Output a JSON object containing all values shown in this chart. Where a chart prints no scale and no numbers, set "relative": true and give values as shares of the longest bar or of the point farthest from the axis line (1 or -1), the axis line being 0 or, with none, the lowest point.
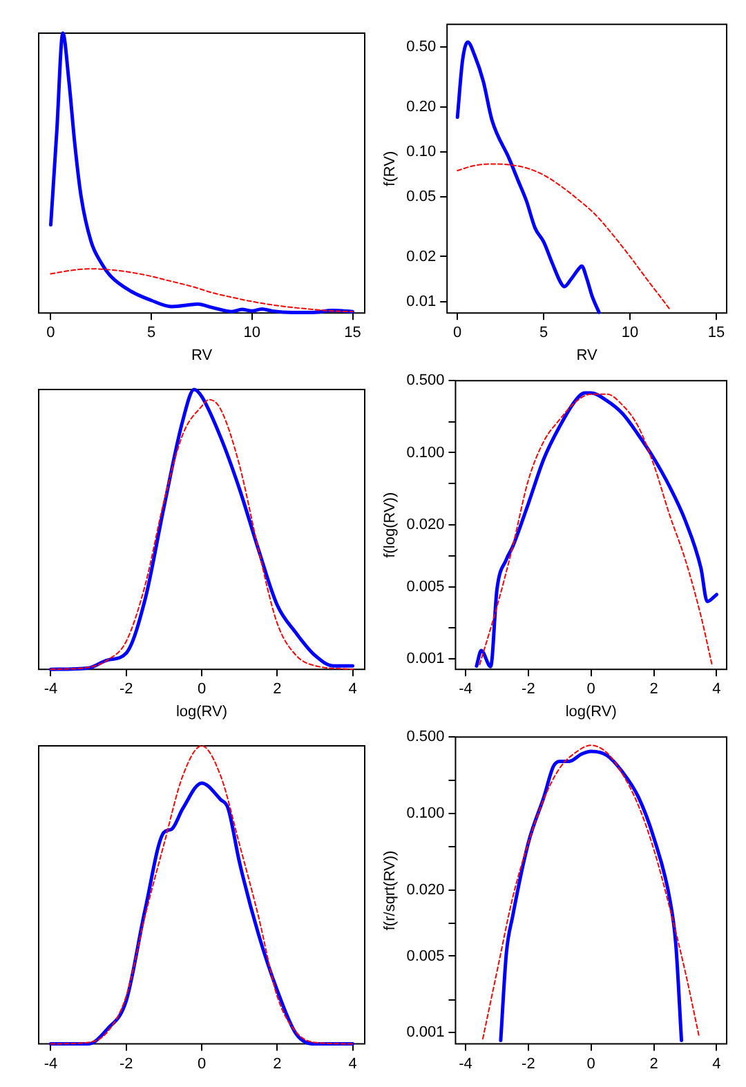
{
  "chart_data": [
    {
      "type": "line",
      "relative": true,
      "xlabel": "RV",
      "xlim": [
        -0.6,
        15.6
      ],
      "xticks": [
        0,
        5,
        10,
        15
      ],
      "series": [
        {
          "color": "#0000ff",
          "line_style": "solid",
          "x": [
            0,
            0.3,
            0.6,
            0.9,
            1.2,
            1.5,
            2,
            2.5,
            3,
            4,
            5,
            6,
            7,
            7.3,
            8,
            9,
            9.5,
            10,
            10.5,
            11,
            12,
            13,
            14,
            15
          ],
          "values": [
            0.315,
            0.65,
            1.0,
            0.83,
            0.6,
            0.42,
            0.256,
            0.18,
            0.13,
            0.077,
            0.045,
            0.023,
            0.03,
            0.032,
            0.02,
            0.005,
            0.013,
            0.007,
            0.014,
            0.007,
            0.002,
            0.002,
            0.009,
            0.005
          ]
        },
        {
          "color": "#ff0000",
          "line_style": "dashed",
          "x": [
            0,
            1,
            2,
            3,
            4,
            5,
            6,
            7,
            8,
            9,
            10,
            11,
            12,
            13,
            14,
            15
          ],
          "values": [
            0.14,
            0.152,
            0.158,
            0.154,
            0.145,
            0.131,
            0.113,
            0.095,
            0.073,
            0.056,
            0.041,
            0.029,
            0.02,
            0.013,
            0.007,
            0.005
          ]
        }
      ]
    },
    {
      "type": "line",
      "log": true,
      "xlabel": "RV",
      "ylabel": "f(RV)",
      "xlim": [
        -0.6,
        15.6
      ],
      "xticks": [
        0,
        5,
        10,
        15
      ],
      "ylim": [
        0.0084,
        0.71
      ],
      "yticks": [
        0.01,
        0.02,
        0.05,
        {
          "value": 0.1,
          "label": "0.10"
        },
        {
          "value": 0.2,
          "label": "0.20"
        },
        {
          "value": 0.5,
          "label": "0.50"
        }
      ],
      "series": [
        {
          "color": "#0000ff",
          "line_style": "solid",
          "x": [
            0,
            0.3,
            0.6,
            1,
            1.5,
            2,
            3,
            3.5,
            4,
            4.5,
            5,
            5.5,
            6,
            6.2,
            6.6,
            7,
            7.2,
            7.5,
            7.8,
            8.2
          ],
          "values": [
            0.17,
            0.41,
            0.54,
            0.44,
            0.295,
            0.163,
            0.09,
            0.065,
            0.047,
            0.031,
            0.025,
            0.018,
            0.0133,
            0.0126,
            0.0142,
            0.0164,
            0.0173,
            0.0142,
            0.0109,
            0.0085
          ]
        },
        {
          "color": "#ff0000",
          "line_style": "dashed",
          "x": [
            0,
            1,
            2,
            3,
            4,
            5,
            6,
            7,
            8,
            9,
            10,
            11,
            12,
            12.3
          ],
          "values": [
            0.075,
            0.081,
            0.083,
            0.082,
            0.078,
            0.07,
            0.059,
            0.048,
            0.038,
            0.028,
            0.02,
            0.014,
            0.0099,
            0.0089
          ]
        }
      ]
    },
    {
      "type": "line",
      "relative": true,
      "xlabel": "log(RV)",
      "xlim": [
        -4.32,
        4.32
      ],
      "xticks": [
        -4,
        -2,
        0,
        2,
        4
      ],
      "series": [
        {
          "color": "#0000ff",
          "line_style": "solid",
          "x": [
            -4,
            -3,
            -2.5,
            -2,
            -1.5,
            -1,
            -0.5,
            -0.2,
            0,
            0.5,
            1,
            1.5,
            2,
            2.5,
            3,
            3.5,
            4
          ],
          "values": [
            0,
            0.005,
            0.033,
            0.058,
            0.25,
            0.58,
            0.89,
            1.0,
            0.975,
            0.83,
            0.645,
            0.43,
            0.23,
            0.13,
            0.05,
            0.012,
            0.012
          ]
        },
        {
          "color": "#ff0000",
          "line_style": "dashed",
          "x": [
            -4,
            -3,
            -2.5,
            -2,
            -1.5,
            -1,
            -0.5,
            0,
            0.2,
            0.5,
            1,
            1.5,
            2,
            2.5,
            3,
            4
          ],
          "values": [
            0,
            0.007,
            0.033,
            0.1,
            0.3,
            0.6,
            0.84,
            0.94,
            0.964,
            0.93,
            0.73,
            0.43,
            0.165,
            0.05,
            0.013,
            0
          ]
        }
      ]
    },
    {
      "type": "line",
      "log": true,
      "xlabel": "log(RV)",
      "ylabel": "f(log(RV))",
      "xlim": [
        -4.32,
        4.32
      ],
      "xticks": [
        -4,
        -2,
        0,
        2,
        4
      ],
      "ylim": [
        0.00079,
        0.5
      ],
      "yticks": [
        0.001,
        {
          "value": 0.002,
          "label": null
        },
        0.005,
        {
          "value": 0.01,
          "label": null
        },
        {
          "value": 0.02,
          "label": "0.020"
        },
        {
          "value": 0.05,
          "label": null
        },
        {
          "value": 0.1,
          "label": "0.100"
        },
        {
          "value": 0.2,
          "label": null
        },
        {
          "value": 0.5,
          "label": "0.500"
        }
      ],
      "series": [
        {
          "color": "#0000ff",
          "line_style": "solid",
          "x": [
            -3.65,
            -3.5,
            -3.2,
            -3,
            -2.7,
            -2.5,
            -2,
            -1.5,
            -1,
            -0.5,
            -0.2,
            0,
            0.5,
            1,
            1.5,
            2,
            2.5,
            3,
            3.5,
            3.7,
            4
          ],
          "values": [
            0.00085,
            0.0012,
            0.00084,
            0.0047,
            0.0092,
            0.0122,
            0.032,
            0.088,
            0.18,
            0.32,
            0.38,
            0.38,
            0.32,
            0.24,
            0.15,
            0.088,
            0.047,
            0.022,
            0.0076,
            0.0036,
            0.0042
          ]
        },
        {
          "color": "#ff0000",
          "line_style": "dashed",
          "x": [
            -3.55,
            -3,
            -2.5,
            -2,
            -1.5,
            -1,
            -0.5,
            0,
            0.5,
            1,
            1.5,
            2,
            2.5,
            3,
            3.5,
            3.85
          ],
          "values": [
            0.00088,
            0.0032,
            0.0122,
            0.054,
            0.13,
            0.21,
            0.31,
            0.37,
            0.37,
            0.29,
            0.18,
            0.076,
            0.025,
            0.0092,
            0.0026,
            0.00088
          ]
        }
      ]
    },
    {
      "type": "line",
      "relative": true,
      "xlim": [
        -4.32,
        4.32
      ],
      "xticks": [
        -4,
        -2,
        0,
        2,
        4
      ],
      "series": [
        {
          "color": "#0000ff",
          "line_style": "solid",
          "x": [
            -4,
            -3,
            -2.5,
            -2,
            -1.5,
            -1,
            -0.8,
            -0.5,
            0,
            0.5,
            0.7,
            1,
            1.5,
            2,
            2.5,
            3,
            4
          ],
          "values": [
            0,
            0,
            0.05,
            0.145,
            0.45,
            0.71,
            0.72,
            0.79,
            0.875,
            0.82,
            0.79,
            0.61,
            0.37,
            0.18,
            0.034,
            0,
            0
          ]
        },
        {
          "color": "#ff0000",
          "line_style": "dashed",
          "x": [
            -4,
            -3,
            -2.5,
            -2,
            -1.5,
            -1,
            -0.5,
            0,
            0.5,
            1,
            1.5,
            2,
            2.5,
            3,
            4
          ],
          "values": [
            0,
            0.005,
            0.04,
            0.16,
            0.43,
            0.67,
            0.9,
            1.0,
            0.9,
            0.67,
            0.43,
            0.16,
            0.04,
            0.005,
            0
          ]
        }
      ]
    },
    {
      "type": "line",
      "log": true,
      "ylabel": "f(r/sqrt(RV))",
      "xlim": [
        -4.32,
        4.32
      ],
      "xticks": [
        -4,
        -2,
        0,
        2,
        4
      ],
      "ylim": [
        0.00079,
        0.5
      ],
      "yticks": [
        0.001,
        {
          "value": 0.002,
          "label": null
        },
        0.005,
        {
          "value": 0.01,
          "label": null
        },
        {
          "value": 0.02,
          "label": "0.020"
        },
        {
          "value": 0.05,
          "label": null
        },
        {
          "value": 0.1,
          "label": "0.100"
        },
        {
          "value": 0.2,
          "label": null
        },
        {
          "value": 0.5,
          "label": "0.500"
        }
      ],
      "series": [
        {
          "color": "#0000ff",
          "line_style": "solid",
          "x": [
            -2.88,
            -2.7,
            -2.5,
            -2,
            -1.5,
            -1.2,
            -1,
            -0.7,
            -0.3,
            0,
            0.5,
            1,
            1.5,
            2,
            2.5,
            2.7,
            2.88
          ],
          "values": [
            0.00085,
            0.0053,
            0.0115,
            0.054,
            0.143,
            0.27,
            0.3,
            0.3,
            0.35,
            0.37,
            0.34,
            0.24,
            0.143,
            0.06,
            0.017,
            0.0064,
            0.00085
          ]
        },
        {
          "color": "#ff0000",
          "line_style": "dashed",
          "x": [
            -3.45,
            -3,
            -2.5,
            -2,
            -1.5,
            -1,
            -0.5,
            0,
            0.5,
            1,
            1.5,
            2,
            2.5,
            3,
            3.45
          ],
          "values": [
            0.00088,
            0.0036,
            0.017,
            0.054,
            0.137,
            0.26,
            0.36,
            0.42,
            0.36,
            0.23,
            0.12,
            0.047,
            0.014,
            0.0036,
            0.0009
          ]
        }
      ]
    }
  ]
}
